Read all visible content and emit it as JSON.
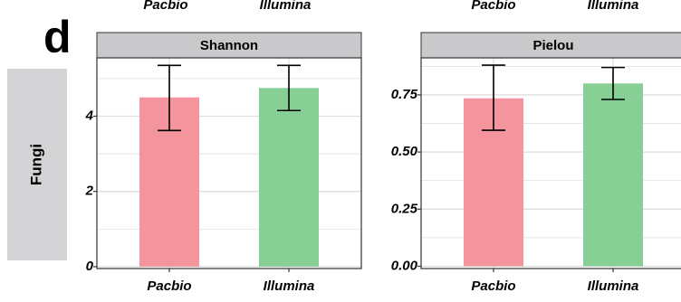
{
  "panel_letter": "d",
  "row_label": "Fungi",
  "top_cut_labels": [
    "Pacbio",
    "Illumina",
    "Pacbio",
    "Illumina"
  ],
  "colors": {
    "pacbio": "#f4959d",
    "illumina": "#88cf96",
    "strip_bg": "#c9c9cc",
    "row_strip_bg": "#d4d4d6",
    "grid": "#dedede",
    "panel_border": "#333333"
  },
  "chart_data": [
    {
      "type": "bar",
      "title": "Shannon",
      "categories": [
        "Pacbio",
        "Illumina"
      ],
      "values": [
        4.5,
        4.75
      ],
      "error_low": [
        3.62,
        4.15
      ],
      "error_high": [
        5.35,
        5.35
      ],
      "ylim": [
        -0.05,
        5.55
      ],
      "yticks": [
        0,
        2,
        4
      ],
      "ytick_labels": [
        "0",
        "2",
        "4"
      ],
      "grid": true,
      "xlabel": "",
      "ylabel": ""
    },
    {
      "type": "bar",
      "title": "Pielou",
      "categories": [
        "Pacbio",
        "Illumina"
      ],
      "values": [
        0.735,
        0.8
      ],
      "error_low": [
        0.595,
        0.73
      ],
      "error_high": [
        0.88,
        0.87
      ],
      "ylim": [
        -0.01,
        0.912
      ],
      "yticks": [
        0.0,
        0.25,
        0.5,
        0.75
      ],
      "ytick_labels": [
        "0.00",
        "0.25",
        "0.50",
        "0.75"
      ],
      "grid": true,
      "xlabel": "",
      "ylabel": ""
    }
  ]
}
